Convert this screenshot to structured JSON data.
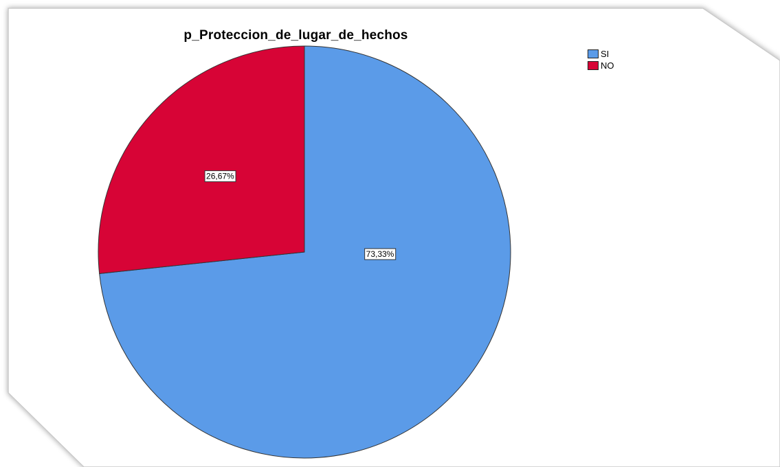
{
  "chart_data": {
    "type": "pie",
    "title": "p_Proteccion_de_lugar_de_hechos",
    "slices": [
      {
        "name": "SI",
        "value": 73.33,
        "label": "73,33%",
        "color": "#5b9be8"
      },
      {
        "name": "NO",
        "value": 26.67,
        "label": "26,67%",
        "color": "#d70436"
      }
    ],
    "legend": {
      "placement": "top-right",
      "entries": [
        "SI",
        "NO"
      ]
    },
    "start_angle": "12 o'clock",
    "direction": "clockwise"
  }
}
